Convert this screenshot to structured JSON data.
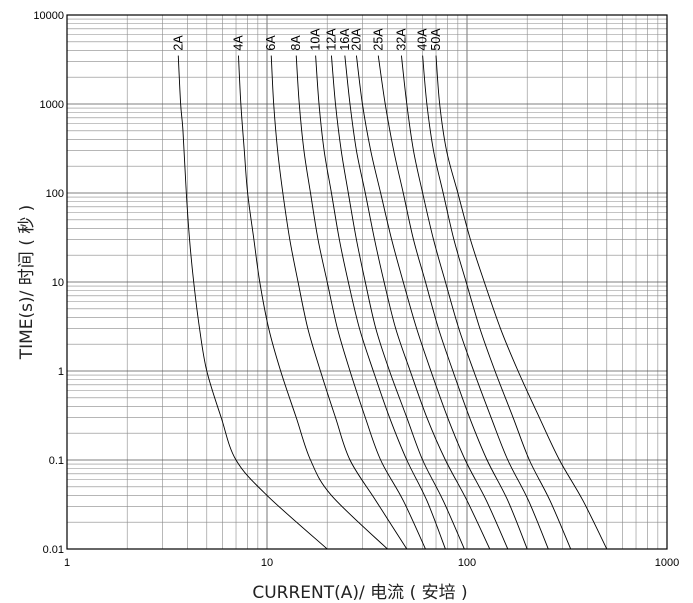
{
  "chart_data": {
    "type": "line",
    "title": "",
    "xlabel": "CURRENT(A)/ 电流 ( 安培 )",
    "ylabel": "TIME(s)/ 时间 ( 秒 )",
    "xscale": "log",
    "yscale": "log",
    "xlim": [
      1,
      1000
    ],
    "ylim": [
      0.01,
      10000
    ],
    "grid": true,
    "legend": "none",
    "x_tick_labels": [
      "1",
      "10",
      "100",
      "1000"
    ],
    "y_tick_labels": [
      "0.01",
      "0.1",
      "1",
      "10",
      "100",
      "1000",
      "10000"
    ],
    "series": [
      {
        "name": "2A",
        "points": [
          [
            3.6,
            3500
          ],
          [
            3.7,
            1000
          ],
          [
            3.8,
            500
          ],
          [
            3.95,
            100
          ],
          [
            4.1,
            30
          ],
          [
            4.3,
            10
          ],
          [
            4.6,
            3
          ],
          [
            5.0,
            1
          ],
          [
            5.9,
            0.3
          ],
          [
            7.0,
            0.1
          ],
          [
            10,
            0.04
          ],
          [
            20,
            0.01
          ]
        ]
      },
      {
        "name": "4A",
        "points": [
          [
            7.2,
            3500
          ],
          [
            7.4,
            1000
          ],
          [
            7.7,
            300
          ],
          [
            8.0,
            100
          ],
          [
            8.6,
            30
          ],
          [
            9.2,
            10
          ],
          [
            10.2,
            3
          ],
          [
            11.7,
            1
          ],
          [
            14,
            0.3
          ],
          [
            16.5,
            0.1
          ],
          [
            21,
            0.04
          ],
          [
            40,
            0.01
          ]
        ]
      },
      {
        "name": "6A",
        "points": [
          [
            10.5,
            3500
          ],
          [
            10.8,
            1000
          ],
          [
            11.3,
            300
          ],
          [
            12,
            100
          ],
          [
            13,
            30
          ],
          [
            14.3,
            10
          ],
          [
            16,
            3
          ],
          [
            18.5,
            1
          ],
          [
            22,
            0.3
          ],
          [
            26,
            0.1
          ],
          [
            35,
            0.035
          ],
          [
            50,
            0.01
          ]
        ]
      },
      {
        "name": "8A",
        "points": [
          [
            14,
            3500
          ],
          [
            14.5,
            1000
          ],
          [
            15.3,
            300
          ],
          [
            16.5,
            100
          ],
          [
            18,
            30
          ],
          [
            20,
            10
          ],
          [
            22.5,
            3
          ],
          [
            26,
            1
          ],
          [
            31,
            0.3
          ],
          [
            37,
            0.1
          ],
          [
            48,
            0.035
          ],
          [
            62,
            0.01
          ]
        ]
      },
      {
        "name": "10A",
        "points": [
          [
            17.5,
            3500
          ],
          [
            18.2,
            1000
          ],
          [
            19.3,
            300
          ],
          [
            21,
            100
          ],
          [
            23,
            30
          ],
          [
            25.5,
            10
          ],
          [
            29,
            3
          ],
          [
            34,
            1
          ],
          [
            41,
            0.3
          ],
          [
            50,
            0.1
          ],
          [
            63,
            0.035
          ],
          [
            78,
            0.01
          ]
        ]
      },
      {
        "name": "12A",
        "points": [
          [
            21,
            3500
          ],
          [
            22,
            1000
          ],
          [
            23.5,
            300
          ],
          [
            25.5,
            100
          ],
          [
            28,
            30
          ],
          [
            31,
            10
          ],
          [
            35,
            3
          ],
          [
            41,
            1
          ],
          [
            50,
            0.3
          ],
          [
            60,
            0.1
          ],
          [
            76,
            0.035
          ],
          [
            97,
            0.01
          ]
        ]
      },
      {
        "name": "16A",
        "points": [
          [
            24.5,
            3500
          ],
          [
            26,
            1000
          ],
          [
            28,
            300
          ],
          [
            31,
            100
          ],
          [
            34.5,
            30
          ],
          [
            38.5,
            10
          ],
          [
            44,
            3
          ],
          [
            52,
            1
          ],
          [
            63,
            0.3
          ],
          [
            78,
            0.1
          ],
          [
            100,
            0.035
          ],
          [
            130,
            0.01
          ]
        ]
      },
      {
        "name": "20A",
        "points": [
          [
            28,
            3500
          ],
          [
            30,
            1000
          ],
          [
            33,
            300
          ],
          [
            37,
            100
          ],
          [
            42,
            30
          ],
          [
            48,
            10
          ],
          [
            56,
            3
          ],
          [
            66,
            1
          ],
          [
            80,
            0.3
          ],
          [
            98,
            0.1
          ],
          [
            125,
            0.035
          ],
          [
            160,
            0.01
          ]
        ]
      },
      {
        "name": "25A",
        "points": [
          [
            36,
            3500
          ],
          [
            39,
            1000
          ],
          [
            43,
            300
          ],
          [
            48,
            100
          ],
          [
            54,
            30
          ],
          [
            62,
            10
          ],
          [
            72,
            3
          ],
          [
            85,
            1
          ],
          [
            103,
            0.3
          ],
          [
            126,
            0.1
          ],
          [
            160,
            0.035
          ],
          [
            200,
            0.01
          ]
        ]
      },
      {
        "name": "32A",
        "points": [
          [
            47,
            3500
          ],
          [
            50,
            1000
          ],
          [
            54,
            300
          ],
          [
            60,
            100
          ],
          [
            68,
            30
          ],
          [
            78,
            10
          ],
          [
            91,
            3
          ],
          [
            108,
            1
          ],
          [
            132,
            0.3
          ],
          [
            160,
            0.1
          ],
          [
            203,
            0.035
          ],
          [
            255,
            0.01
          ]
        ]
      },
      {
        "name": "40A",
        "points": [
          [
            60,
            3500
          ],
          [
            63,
            1000
          ],
          [
            68,
            300
          ],
          [
            76,
            100
          ],
          [
            86,
            30
          ],
          [
            99,
            10
          ],
          [
            116,
            3
          ],
          [
            138,
            1
          ],
          [
            170,
            0.3
          ],
          [
            205,
            0.1
          ],
          [
            260,
            0.035
          ],
          [
            330,
            0.01
          ]
        ]
      },
      {
        "name": "50A",
        "points": [
          [
            70,
            3500
          ],
          [
            73,
            1000
          ],
          [
            79,
            300
          ],
          [
            90,
            100
          ],
          [
            104,
            30
          ],
          [
            122,
            10
          ],
          [
            147,
            3
          ],
          [
            180,
            1
          ],
          [
            230,
            0.3
          ],
          [
            290,
            0.1
          ],
          [
            380,
            0.035
          ],
          [
            500,
            0.01
          ]
        ]
      }
    ]
  }
}
